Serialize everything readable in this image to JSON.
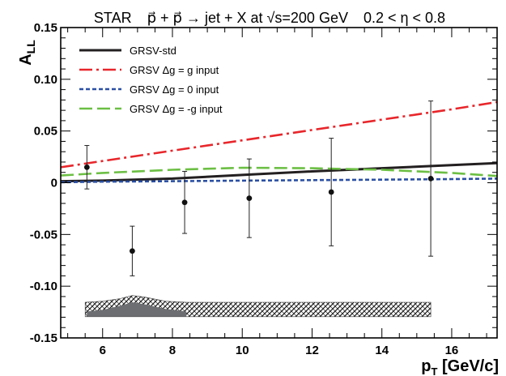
{
  "chart_data": {
    "type": "line",
    "title": {
      "experiment": "STAR",
      "reaction": "p⃗ + p⃗ → jet + X at √s=200 GeV",
      "eta_range": "0.2 < η < 0.8"
    },
    "xlabel": {
      "main": "p",
      "sub": "T",
      "unit": " [GeV/c]"
    },
    "ylabel": {
      "main": "A",
      "sub": "LL"
    },
    "xlim": [
      4.8,
      17.3
    ],
    "ylim": [
      -0.15,
      0.15
    ],
    "xticks": [
      6,
      8,
      10,
      12,
      14,
      16
    ],
    "xtick_labels": [
      "6",
      "8",
      "10",
      "12",
      "14",
      "16"
    ],
    "yticks": [
      -0.15,
      -0.1,
      -0.05,
      0,
      0.05,
      0.1,
      0.15
    ],
    "ytick_labels": [
      "-0.15",
      "-0.10",
      "-0.05",
      "0",
      "0.05",
      "0.10",
      "0.15"
    ],
    "grid": false,
    "legend_position": "top-left",
    "series": [
      {
        "name": "GRSV-std",
        "color": "#231f20",
        "style": "solid",
        "x": [
          4.8,
          6,
          8,
          10,
          12,
          14,
          16,
          17.3
        ],
        "y": [
          0.0015,
          0.002,
          0.004,
          0.0075,
          0.011,
          0.014,
          0.017,
          0.019
        ]
      },
      {
        "name": "GRSV  Δg = g input",
        "color": "#e8262b",
        "style": "dashdot",
        "x": [
          4.8,
          6,
          8,
          10,
          12,
          14,
          16,
          17.3
        ],
        "y": [
          0.015,
          0.021,
          0.031,
          0.041,
          0.051,
          0.061,
          0.071,
          0.078
        ]
      },
      {
        "name": "GRSV  Δg = 0 input",
        "color": "#2a4fa3",
        "style": "dotted",
        "x": [
          4.8,
          6,
          8,
          10,
          12,
          14,
          16,
          17.3
        ],
        "y": [
          0.0005,
          0.001,
          0.0015,
          0.002,
          0.0025,
          0.003,
          0.0035,
          0.004
        ]
      },
      {
        "name": "GRSV  Δg = -g input",
        "color": "#6cbf44",
        "style": "dashed",
        "x": [
          4.8,
          6,
          8,
          10,
          12,
          14,
          16,
          17.3
        ],
        "y": [
          0.007,
          0.0095,
          0.0125,
          0.0145,
          0.014,
          0.0125,
          0.0095,
          0.0065
        ]
      }
    ],
    "data_points": {
      "color": "#111111",
      "points": [
        {
          "x": 5.55,
          "y": 0.015,
          "err": 0.021
        },
        {
          "x": 6.85,
          "y": -0.066,
          "err": 0.024
        },
        {
          "x": 8.35,
          "y": -0.019,
          "err": 0.03
        },
        {
          "x": 10.2,
          "y": -0.015,
          "err": 0.038
        },
        {
          "x": 12.55,
          "y": -0.009,
          "err": 0.052
        },
        {
          "x": 15.4,
          "y": 0.004,
          "err": 0.075
        }
      ]
    },
    "systematic_band": {
      "hatched_outline": {
        "x": [
          5.5,
          6.0,
          6.5,
          6.85,
          7.2,
          7.8,
          8.4,
          15.4
        ],
        "upper": [
          -0.1155,
          -0.1145,
          -0.112,
          -0.109,
          -0.1105,
          -0.1145,
          -0.1155,
          -0.1155
        ],
        "lower": [
          -0.1295,
          -0.1295,
          -0.1295,
          -0.1295,
          -0.1295,
          -0.1295,
          -0.1295,
          -0.1295
        ]
      },
      "solid_inner": {
        "x": [
          5.55,
          6.0,
          6.5,
          6.85,
          7.2,
          7.8,
          8.4
        ],
        "upper": [
          -0.1245,
          -0.123,
          -0.119,
          -0.1155,
          -0.1175,
          -0.122,
          -0.1245
        ],
        "lower": [
          -0.1295,
          -0.1295,
          -0.1295,
          -0.1295,
          -0.1295,
          -0.1295,
          -0.1295
        ]
      },
      "fill_color": "#6d6e71"
    }
  }
}
